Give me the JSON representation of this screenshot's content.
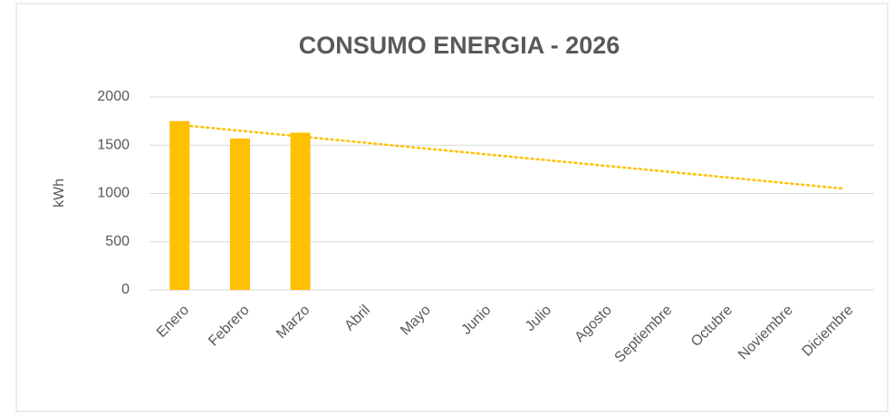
{
  "chart_data": {
    "type": "bar",
    "title": "CONSUMO ENERGIA - 2026",
    "y_label": "kWh",
    "categories": [
      "Enero",
      "Febrero",
      "Marzo",
      "Abril",
      "Mayo",
      "Junio",
      "Julio",
      "Agosto",
      "Septiembre",
      "Octubre",
      "Noviembre",
      "Diciembre"
    ],
    "values": [
      1750,
      1570,
      1630,
      null,
      null,
      null,
      null,
      null,
      null,
      null,
      null,
      null
    ],
    "color": "#ffc000",
    "trendline": "linear",
    "ylim": [
      0,
      2000
    ],
    "yticks": [
      0,
      500,
      1000,
      1500,
      2000
    ],
    "grid": true
  }
}
